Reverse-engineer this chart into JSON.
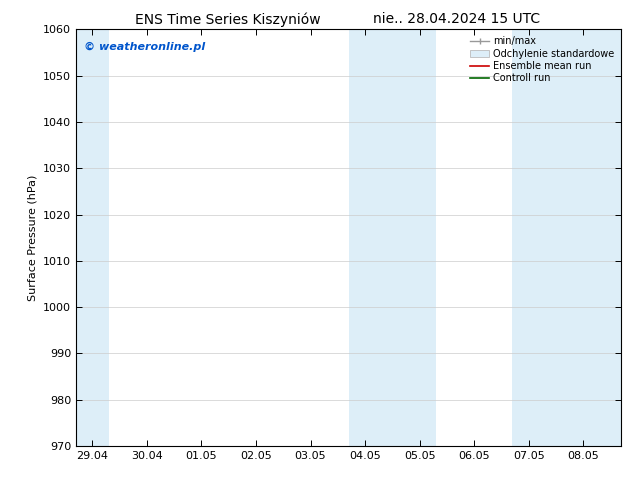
{
  "title_left": "ENS Time Series Kiszyniów",
  "title_right": "nie.. 28.04.2024 15 UTC",
  "ylabel": "Surface Pressure (hPa)",
  "ylim": [
    970,
    1060
  ],
  "yticks": [
    970,
    980,
    990,
    1000,
    1010,
    1020,
    1030,
    1040,
    1050,
    1060
  ],
  "xtick_labels": [
    "29.04",
    "30.04",
    "01.05",
    "02.05",
    "03.05",
    "04.05",
    "05.05",
    "06.05",
    "07.05",
    "08.05"
  ],
  "xtick_positions": [
    0,
    1,
    2,
    3,
    4,
    5,
    6,
    7,
    8,
    9
  ],
  "xlim": [
    -0.3,
    9.7
  ],
  "shaded_bands": [
    {
      "x_start": -0.3,
      "x_end": 0.3,
      "color": "#ddeef8"
    },
    {
      "x_start": 4.7,
      "x_end": 6.3,
      "color": "#ddeef8"
    },
    {
      "x_start": 7.7,
      "x_end": 9.7,
      "color": "#ddeef8"
    }
  ],
  "watermark_text": "© weatheronline.pl",
  "watermark_color": "#0055cc",
  "legend_labels": [
    "min/max",
    "Odchylenie standardowe",
    "Ensemble mean run",
    "Controll run"
  ],
  "background_color": "#ffffff",
  "plot_bg_color": "#ffffff",
  "grid_color": "#cccccc",
  "title_fontsize": 10,
  "label_fontsize": 8,
  "tick_fontsize": 8,
  "watermark_fontsize": 8
}
